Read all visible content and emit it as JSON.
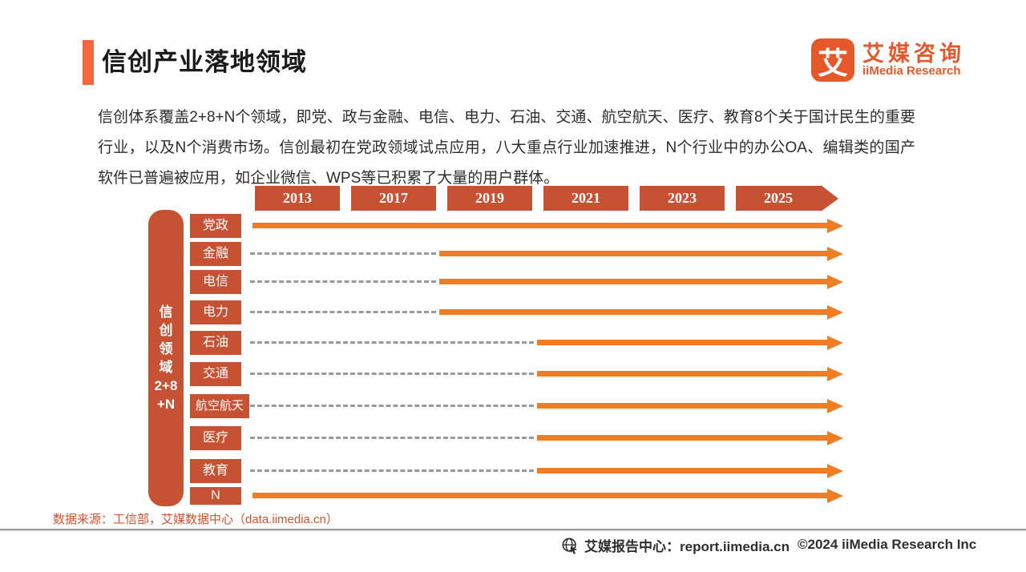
{
  "header": {
    "title": "信创产业落地领域",
    "logo": {
      "icon_glyph": "艾",
      "brand_cn": "艾媒咨询",
      "brand_en": "iiMedia Research"
    }
  },
  "intro": {
    "text": "信创体系覆盖2+8+N个领域，即党、政与金融、电信、电力、石油、交通、航空航天、医疗、教育8个关于国计民生的重要行业，以及N个消费市场。信创最初在党政领域试点应用，八大重点行业加速推进，N个行业中的办公OA、编辑类的国产软件已普遍被应用，如企业微信、WPS等已积累了大量的用户群体。"
  },
  "chart_data": {
    "type": "timeline",
    "title": "信创产业落地领域",
    "years": [
      "2013",
      "2017",
      "2019",
      "2021",
      "2023",
      "2025"
    ],
    "axis_title": "信创领域2+8+N",
    "axis_title_lines": [
      "信",
      "创",
      "领",
      "域",
      "2+8",
      "+N"
    ],
    "rows": [
      {
        "label": "党政",
        "solid_from": "2013"
      },
      {
        "label": "金融",
        "solid_from": "2019"
      },
      {
        "label": "电信",
        "solid_from": "2019"
      },
      {
        "label": "电力",
        "solid_from": "2019"
      },
      {
        "label": "石油",
        "solid_from": "2021"
      },
      {
        "label": "交通",
        "solid_from": "2021"
      },
      {
        "label": "航空航天",
        "solid_from": "2021"
      },
      {
        "label": "医疗",
        "solid_from": "2021"
      },
      {
        "label": "教育",
        "solid_from": "2021"
      },
      {
        "label": "N",
        "solid_from": "2013"
      }
    ],
    "colors": {
      "year_box": "#C75233",
      "label_box": "#C75233",
      "arrow": "#EF7D26",
      "dash": "#999999",
      "accent": "#F5673B",
      "brand": "#E4582A"
    },
    "legend_note": "dashed segment precedes solid adoption arrow"
  },
  "source": {
    "text": "数据来源：工信部，艾媒数据中心（data.iimedia.cn）"
  },
  "footer": {
    "report_center": "艾媒报告中心：report.iimedia.cn",
    "copyright": "©2024  iiMedia Research Inc"
  }
}
